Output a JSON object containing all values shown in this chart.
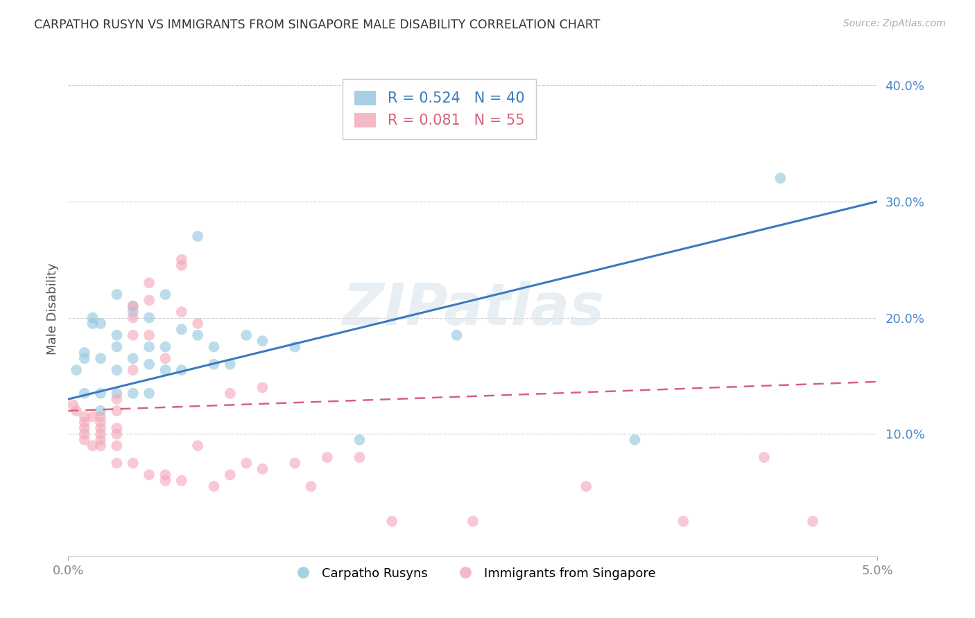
{
  "title": "CARPATHO RUSYN VS IMMIGRANTS FROM SINGAPORE MALE DISABILITY CORRELATION CHART",
  "source": "Source: ZipAtlas.com",
  "ylabel": "Male Disability",
  "xlim": [
    0.0,
    0.05
  ],
  "ylim": [
    -0.005,
    0.42
  ],
  "yticks": [
    0.1,
    0.2,
    0.3,
    0.4
  ],
  "ytick_labels": [
    "10.0%",
    "20.0%",
    "30.0%",
    "40.0%"
  ],
  "bg_color": "#ffffff",
  "grid_color": "#d0d0d0",
  "blue_color": "#92c5de",
  "pink_color": "#f4a6b8",
  "blue_line_color": "#3a7abf",
  "pink_line_color": "#d9607a",
  "legend_blue_label": "R = 0.524   N = 40",
  "legend_pink_label": "R = 0.081   N = 55",
  "series1_label": "Carpatho Rusyns",
  "series2_label": "Immigrants from Singapore",
  "watermark": "ZIPatlas",
  "blue_scatter_x": [
    0.0005,
    0.001,
    0.001,
    0.001,
    0.0015,
    0.0015,
    0.002,
    0.002,
    0.002,
    0.002,
    0.003,
    0.003,
    0.003,
    0.003,
    0.003,
    0.004,
    0.004,
    0.004,
    0.004,
    0.005,
    0.005,
    0.005,
    0.005,
    0.006,
    0.006,
    0.006,
    0.007,
    0.007,
    0.008,
    0.008,
    0.009,
    0.009,
    0.01,
    0.011,
    0.012,
    0.014,
    0.018,
    0.024,
    0.035,
    0.044
  ],
  "blue_scatter_y": [
    0.155,
    0.17,
    0.165,
    0.135,
    0.2,
    0.195,
    0.195,
    0.165,
    0.135,
    0.12,
    0.22,
    0.185,
    0.175,
    0.155,
    0.135,
    0.21,
    0.205,
    0.165,
    0.135,
    0.2,
    0.175,
    0.16,
    0.135,
    0.22,
    0.175,
    0.155,
    0.19,
    0.155,
    0.27,
    0.185,
    0.175,
    0.16,
    0.16,
    0.185,
    0.18,
    0.175,
    0.095,
    0.185,
    0.095,
    0.32
  ],
  "pink_scatter_x": [
    0.0003,
    0.0005,
    0.001,
    0.001,
    0.001,
    0.001,
    0.001,
    0.0015,
    0.0015,
    0.002,
    0.002,
    0.002,
    0.002,
    0.002,
    0.002,
    0.003,
    0.003,
    0.003,
    0.003,
    0.003,
    0.003,
    0.004,
    0.004,
    0.004,
    0.004,
    0.004,
    0.005,
    0.005,
    0.005,
    0.005,
    0.006,
    0.006,
    0.006,
    0.007,
    0.007,
    0.007,
    0.007,
    0.008,
    0.008,
    0.009,
    0.01,
    0.01,
    0.011,
    0.012,
    0.012,
    0.014,
    0.015,
    0.016,
    0.018,
    0.02,
    0.025,
    0.032,
    0.038,
    0.043,
    0.046
  ],
  "pink_scatter_y": [
    0.125,
    0.12,
    0.115,
    0.11,
    0.105,
    0.1,
    0.095,
    0.115,
    0.09,
    0.115,
    0.11,
    0.105,
    0.1,
    0.095,
    0.09,
    0.13,
    0.12,
    0.105,
    0.1,
    0.09,
    0.075,
    0.21,
    0.2,
    0.185,
    0.155,
    0.075,
    0.23,
    0.215,
    0.185,
    0.065,
    0.165,
    0.065,
    0.06,
    0.25,
    0.245,
    0.205,
    0.06,
    0.195,
    0.09,
    0.055,
    0.135,
    0.065,
    0.075,
    0.14,
    0.07,
    0.075,
    0.055,
    0.08,
    0.08,
    0.025,
    0.025,
    0.055,
    0.025,
    0.08,
    0.025
  ],
  "blue_trendline_x": [
    0.0,
    0.05
  ],
  "blue_trendline_y": [
    0.13,
    0.3
  ],
  "pink_trendline_x": [
    0.0,
    0.05
  ],
  "pink_trendline_y": [
    0.12,
    0.145
  ]
}
